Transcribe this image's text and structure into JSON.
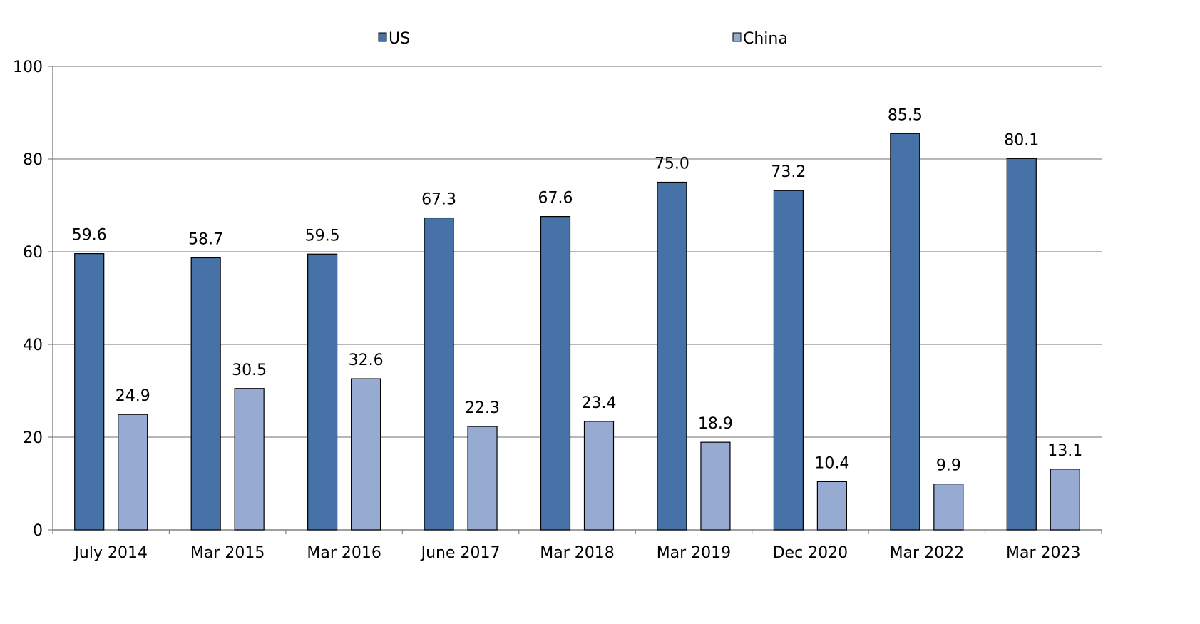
{
  "chart_data": {
    "type": "bar",
    "title": "",
    "xlabel": "",
    "ylabel": "",
    "ylim": [
      0,
      100
    ],
    "yticks": [
      0,
      20,
      40,
      60,
      80,
      100
    ],
    "grid": true,
    "legend_position": "top-center",
    "categories": [
      "July 2014",
      "Mar 2015",
      "Mar 2016",
      "June 2017",
      "Mar 2018",
      "Mar 2019",
      "Dec 2020",
      "Mar 2022",
      "Mar 2023"
    ],
    "series": [
      {
        "name": "US",
        "color": "#4672A8",
        "values": [
          59.6,
          58.7,
          59.5,
          67.3,
          67.6,
          75.0,
          73.2,
          85.5,
          80.1
        ],
        "labels": [
          "59.6",
          "58.7",
          "59.5",
          "67.3",
          "67.6",
          "75.0",
          "73.2",
          "85.5",
          "80.1"
        ]
      },
      {
        "name": "China",
        "color": "#96AAD2",
        "values": [
          24.9,
          30.5,
          32.6,
          22.3,
          23.4,
          18.9,
          10.4,
          9.9,
          13.1
        ],
        "labels": [
          "24.9",
          "30.5",
          "32.6",
          "22.3",
          "23.4",
          "18.9",
          "10.4",
          "9.9",
          "13.1"
        ]
      }
    ]
  }
}
